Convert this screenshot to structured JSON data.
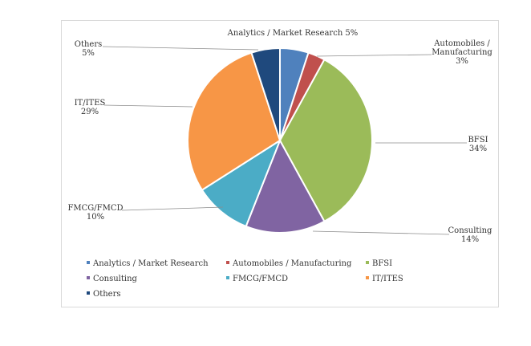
{
  "chart_data": {
    "type": "pie",
    "title": "",
    "slices": [
      {
        "label": "Analytics / Market Research",
        "value": 5,
        "display": "5%",
        "color": "#4F81BD"
      },
      {
        "label": "Automobiles / Manufacturing",
        "value": 3,
        "display": "3%",
        "color": "#C0504D"
      },
      {
        "label": "BFSI",
        "value": 34,
        "display": "34%",
        "color": "#9BBB59"
      },
      {
        "label": "Consulting",
        "value": 14,
        "display": "14%",
        "color": "#8064A2"
      },
      {
        "label": "FMCG/FMCD",
        "value": 10,
        "display": "10%",
        "color": "#4BACC6"
      },
      {
        "label": "IT/ITES",
        "value": 29,
        "display": "29%",
        "color": "#F79646"
      },
      {
        "label": "Others",
        "value": 5,
        "display": "5%",
        "color": "#1F497D"
      }
    ],
    "legend_position": "bottom"
  }
}
